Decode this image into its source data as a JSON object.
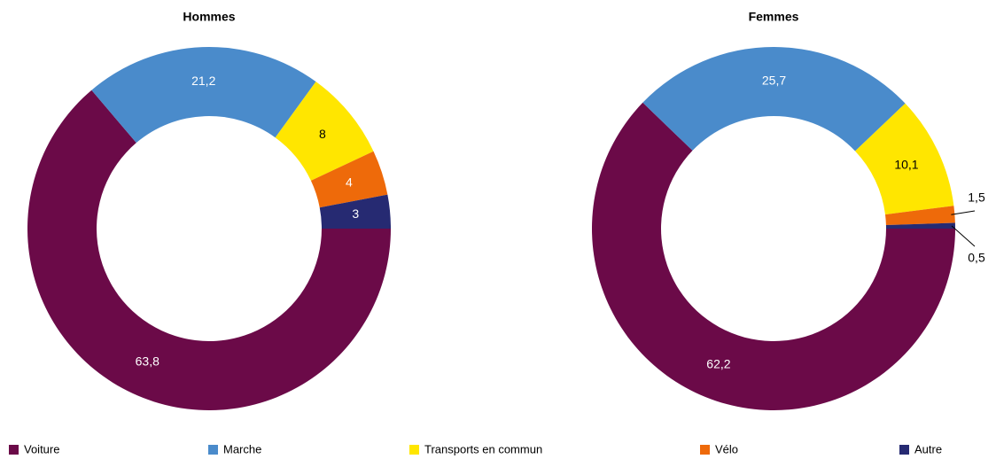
{
  "chart_data": [
    {
      "type": "pie",
      "title": "Hommes",
      "categories": [
        "Voiture",
        "Marche",
        "Transports en commun",
        "Vélo",
        "Autre"
      ],
      "values": [
        63.8,
        21.2,
        8,
        4,
        3
      ],
      "value_labels": [
        "63,8",
        "21,2",
        "8",
        "4",
        "3"
      ],
      "colors": [
        "#6b0a48",
        "#4a8bcb",
        "#ffe600",
        "#ee6a0a",
        "#262a72"
      ]
    },
    {
      "type": "pie",
      "title": "Femmes",
      "categories": [
        "Voiture",
        "Marche",
        "Transports en commun",
        "Vélo",
        "Autre"
      ],
      "values": [
        62.2,
        25.7,
        10.1,
        1.5,
        0.5
      ],
      "value_labels": [
        "62,2",
        "25,7",
        "10,1",
        "1,5",
        "0,5"
      ],
      "colors": [
        "#6b0a48",
        "#4a8bcb",
        "#ffe600",
        "#ee6a0a",
        "#262a72"
      ]
    }
  ]
}
